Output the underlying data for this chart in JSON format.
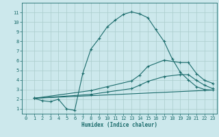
{
  "xlabel": "Humidex (Indice chaleur)",
  "bg_color": "#cce8ec",
  "grid_color": "#aacccc",
  "line_color": "#1a6b6b",
  "xlim": [
    -0.5,
    23.5
  ],
  "ylim": [
    0.5,
    12
  ],
  "yticks": [
    1,
    2,
    3,
    4,
    5,
    6,
    7,
    8,
    9,
    10,
    11
  ],
  "xticks": [
    0,
    1,
    2,
    3,
    4,
    5,
    6,
    7,
    8,
    9,
    10,
    11,
    12,
    13,
    14,
    15,
    16,
    17,
    18,
    19,
    20,
    21,
    22,
    23
  ],
  "curve1_x": [
    1,
    2,
    3,
    4,
    5,
    6,
    7,
    8,
    9,
    10,
    11,
    12,
    13,
    14,
    15,
    16,
    17,
    18,
    19,
    20,
    21,
    22,
    23
  ],
  "curve1_y": [
    2.1,
    1.85,
    1.75,
    2.0,
    1.0,
    0.85,
    4.7,
    7.2,
    8.3,
    9.5,
    10.2,
    10.8,
    11.05,
    10.85,
    10.45,
    9.2,
    8.0,
    6.2,
    4.8,
    4.0,
    3.3,
    3.0,
    2.95
  ],
  "curve2_x": [
    1,
    8,
    10,
    13,
    14,
    15,
    17,
    19,
    20,
    21,
    22,
    23
  ],
  "curve2_y": [
    2.1,
    2.9,
    3.3,
    3.9,
    4.5,
    5.4,
    6.05,
    5.8,
    5.8,
    4.65,
    3.95,
    3.65
  ],
  "curve3_x": [
    1,
    23
  ],
  "curve3_y": [
    2.1,
    2.95
  ],
  "curve4_x": [
    1,
    8,
    10,
    13,
    14,
    15,
    17,
    19,
    20,
    21,
    22,
    23
  ],
  "curve4_y": [
    2.1,
    2.5,
    2.75,
    3.1,
    3.45,
    3.85,
    4.35,
    4.55,
    4.55,
    3.95,
    3.45,
    3.1
  ],
  "tick_fontsize": 5.0,
  "xlabel_fontsize": 5.5
}
